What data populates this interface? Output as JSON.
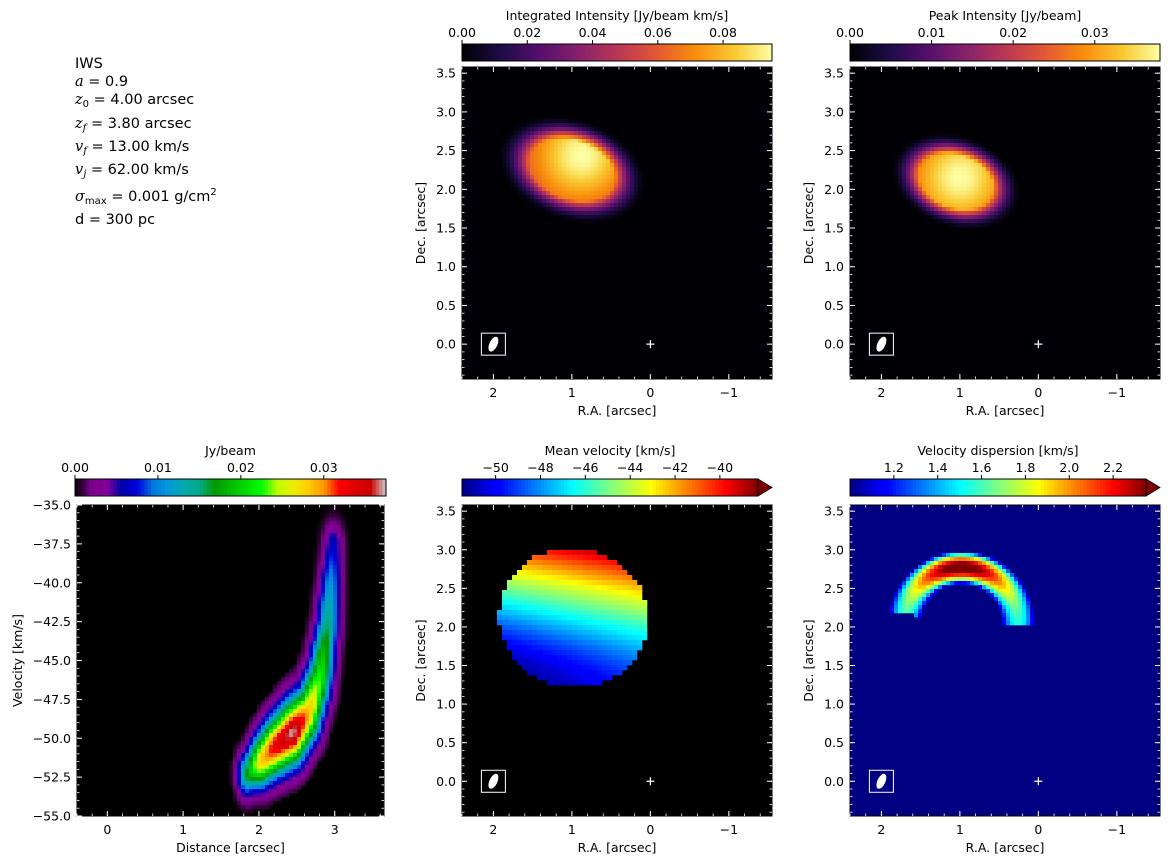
{
  "model_params": {
    "name": "IWS",
    "a": {
      "label": "a",
      "value": "= 0.9"
    },
    "z0": {
      "label": "z",
      "sub": "0",
      "value": "= 4.00 arcsec"
    },
    "zf": {
      "label": "z",
      "sub": "f",
      "value": "= 3.80 arcsec"
    },
    "vf": {
      "label": "v",
      "sub": "f",
      "value": "= 13.00 km/s"
    },
    "vj": {
      "label": "v",
      "sub": "j",
      "value": "= 62.00 km/s"
    },
    "sigma": {
      "label": "σ",
      "sub": "max",
      "value": "= 0.001 g/cm",
      "sup": "2"
    },
    "d": {
      "label": "d",
      "value": "= 300 pc"
    }
  },
  "chart_data": [
    {
      "id": "mom0",
      "type": "heatmap",
      "title": "Integrated Intensity [Jy/beam km/s]",
      "xlabel": "R.A. [arcsec]",
      "ylabel": "Dec. [arcsec]",
      "xlim": [
        2.4,
        -1.55
      ],
      "ylim": [
        -0.45,
        3.58
      ],
      "xticks": [
        2,
        1,
        0,
        -1
      ],
      "xtick_labels": [
        "2",
        "1",
        "0",
        "−1"
      ],
      "yticks": [
        0.0,
        0.5,
        1.0,
        1.5,
        2.0,
        2.5,
        3.0,
        3.5
      ],
      "ytick_labels": [
        "0.0",
        "0.5",
        "1.0",
        "1.5",
        "2.0",
        "2.5",
        "3.0",
        "3.5"
      ],
      "colormap": "inferno",
      "colorbar": {
        "range": [
          0.0,
          0.095
        ],
        "ticks": [
          0.0,
          0.02,
          0.04,
          0.06,
          0.08
        ],
        "labels": [
          "0.00",
          "0.02",
          "0.04",
          "0.06",
          "0.08"
        ],
        "extend": false
      },
      "emission": {
        "shape": "ellipse",
        "center": [
          1.0,
          2.25
        ],
        "semi_axes": [
          0.78,
          0.52
        ],
        "rotation_deg": 20,
        "peak_offset": [
          -0.12,
          0.18
        ]
      },
      "beam_position": [
        2.0,
        0.0
      ],
      "source_marker": [
        0,
        0
      ]
    },
    {
      "id": "mom8",
      "type": "heatmap",
      "title": "Peak Intensity [Jy/beam]",
      "xlabel": "R.A. [arcsec]",
      "ylabel": "Dec. [arcsec]",
      "xlim": [
        2.4,
        -1.55
      ],
      "ylim": [
        -0.45,
        3.58
      ],
      "xticks": [
        2,
        1,
        0,
        -1
      ],
      "xtick_labels": [
        "2",
        "1",
        "0",
        "−1"
      ],
      "yticks": [
        0.0,
        0.5,
        1.0,
        1.5,
        2.0,
        2.5,
        3.0,
        3.5
      ],
      "ytick_labels": [
        "0.0",
        "0.5",
        "1.0",
        "1.5",
        "2.0",
        "2.5",
        "3.0",
        "3.5"
      ],
      "colormap": "inferno",
      "colorbar": {
        "range": [
          0.0,
          0.038
        ],
        "ticks": [
          0.0,
          0.01,
          0.02,
          0.03
        ],
        "labels": [
          "0.00",
          "0.01",
          "0.02",
          "0.03"
        ],
        "extend": false
      },
      "emission": {
        "shape": "ellipse",
        "center": [
          1.05,
          2.1
        ],
        "semi_axes": [
          0.68,
          0.47
        ],
        "rotation_deg": 20,
        "peak_offset": [
          -0.05,
          0.05
        ]
      },
      "beam_position": [
        2.0,
        0.0
      ],
      "source_marker": [
        0,
        0
      ]
    },
    {
      "id": "pv",
      "type": "heatmap",
      "title": "Jy/beam",
      "xlabel": "Distance [arcsec]",
      "ylabel": "Velocity [km/s]",
      "xlim": [
        -0.4,
        3.65
      ],
      "ylim": [
        -55.0,
        -35.0
      ],
      "xticks": [
        0,
        1,
        2,
        3
      ],
      "xtick_labels": [
        "0",
        "1",
        "2",
        "3"
      ],
      "yticks": [
        -55.0,
        -52.5,
        -50.0,
        -47.5,
        -45.0,
        -42.5,
        -40.0,
        -37.5,
        -35.0
      ],
      "ytick_labels": [
        "−55.0",
        "−52.5",
        "−50.0",
        "−47.5",
        "−45.0",
        "−42.5",
        "−40.0",
        "−37.5",
        "−35.0"
      ],
      "colormap": "nipy_spectral",
      "colorbar": {
        "range": [
          0.0,
          0.0375
        ],
        "ticks": [
          0.0,
          0.01,
          0.02,
          0.03
        ],
        "labels": [
          "0.00",
          "0.01",
          "0.02",
          "0.03"
        ],
        "extend": false
      },
      "ridge": [
        [
          1.85,
          -52.3
        ],
        [
          2.0,
          -51.6
        ],
        [
          2.2,
          -50.6
        ],
        [
          2.45,
          -49.6
        ],
        [
          2.65,
          -48.4
        ],
        [
          2.8,
          -46.2
        ],
        [
          2.9,
          -43.0
        ],
        [
          2.95,
          -39.8
        ],
        [
          2.98,
          -37.6
        ]
      ],
      "ridge_peak": [
        [
          0.45,
          0.2
        ],
        [
          0.72,
          0.45
        ],
        [
          0.88,
          0.62
        ],
        [
          1.0,
          0.78
        ],
        [
          0.78,
          0.65
        ],
        [
          0.6,
          0.55
        ],
        [
          0.42,
          0.42
        ],
        [
          0.28,
          0.3
        ],
        [
          0.18,
          0.2
        ]
      ]
    },
    {
      "id": "mom1",
      "type": "heatmap",
      "title": "Mean velocity [km/s]",
      "xlabel": "R.A. [arcsec]",
      "ylabel": "Dec. [arcsec]",
      "xlim": [
        2.4,
        -1.55
      ],
      "ylim": [
        -0.45,
        3.58
      ],
      "xticks": [
        2,
        1,
        0,
        -1
      ],
      "xtick_labels": [
        "2",
        "1",
        "0",
        "−1"
      ],
      "yticks": [
        0.0,
        0.5,
        1.0,
        1.5,
        2.0,
        2.5,
        3.0,
        3.5
      ],
      "ytick_labels": [
        "0.0",
        "0.5",
        "1.0",
        "1.5",
        "2.0",
        "2.5",
        "3.0",
        "3.5"
      ],
      "colormap": "jet",
      "colorbar": {
        "range": [
          -51.5,
          -38.3
        ],
        "ticks": [
          -50,
          -48,
          -46,
          -44,
          -42,
          -40
        ],
        "labels": [
          "−50",
          "−48",
          "−46",
          "−44",
          "−42",
          "−40"
        ],
        "extend": true
      },
      "emission": {
        "shape": "ellipse",
        "center": [
          0.98,
          2.12
        ],
        "semi_axes": [
          0.95,
          0.9
        ],
        "rotation_deg": 15
      },
      "beam_position": [
        2.0,
        0.0
      ],
      "source_marker": [
        0,
        0
      ]
    },
    {
      "id": "mom2",
      "type": "heatmap",
      "title": "Velocity dispersion [km/s]",
      "xlabel": "R.A. [arcsec]",
      "ylabel": "Dec. [arcsec]",
      "xlim": [
        2.4,
        -1.55
      ],
      "ylim": [
        -0.45,
        3.58
      ],
      "xticks": [
        2,
        1,
        0,
        -1
      ],
      "xtick_labels": [
        "2",
        "1",
        "0",
        "−1"
      ],
      "yticks": [
        0.0,
        0.5,
        1.0,
        1.5,
        2.0,
        2.5,
        3.0,
        3.5
      ],
      "ytick_labels": [
        "0.0",
        "0.5",
        "1.0",
        "1.5",
        "2.0",
        "2.5",
        "3.0",
        "3.5"
      ],
      "colormap": "jet",
      "colorbar": {
        "range": [
          1.0,
          2.35
        ],
        "ticks": [
          1.2,
          1.4,
          1.6,
          1.8,
          2.0,
          2.2
        ],
        "labels": [
          "1.2",
          "1.4",
          "1.6",
          "1.8",
          "2.0",
          "2.2"
        ],
        "extend": true
      },
      "background_value": 1.0,
      "arc": {
        "center": [
          0.98,
          2.05
        ],
        "radius": 0.72,
        "thickness": 0.42,
        "angle_range_deg": [
          20,
          170
        ],
        "peak_position": [
          0.98,
          2.7
        ]
      },
      "beam_position": [
        2.0,
        0.0
      ],
      "source_marker": [
        0,
        0
      ]
    }
  ]
}
